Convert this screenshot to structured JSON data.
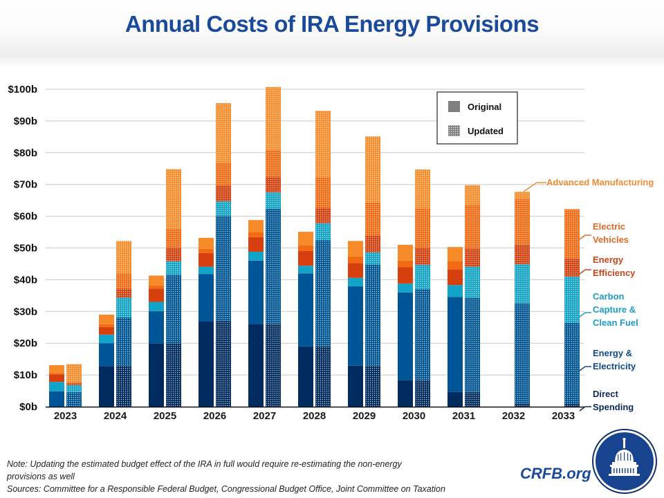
{
  "title": "Annual Costs of IRA Energy Provisions",
  "note_lines": [
    "Note: Updating the estimated budget effect of the IRA in full would require re-estimating the non-energy",
    "provisions as well",
    "Sources: Committee for a Responsible Federal Budget, Congressional Budget Office, Joint Committee on Taxation"
  ],
  "brand": "CRFB.org",
  "logo_icon": "capitol-dome-icon",
  "chart_data": {
    "type": "bar",
    "stacked": true,
    "grouped": true,
    "title": "Annual Costs of IRA Energy Provisions",
    "xlabel": "",
    "ylabel": "",
    "ylim": [
      0,
      100
    ],
    "ytick_labels": [
      "$0b",
      "$10b",
      "$20b",
      "$30b",
      "$40b",
      "$50b",
      "$60b",
      "$70b",
      "$80b",
      "$90b",
      "$100b"
    ],
    "yticks": [
      0,
      10,
      20,
      30,
      40,
      50,
      60,
      70,
      80,
      90,
      100
    ],
    "grid": true,
    "categories": [
      "2023",
      "2024",
      "2025",
      "2026",
      "2027",
      "2028",
      "2029",
      "2030",
      "2031",
      "2032",
      "2033"
    ],
    "legend": {
      "placement": "top-right",
      "entries": [
        {
          "label": "Original",
          "style": "solid"
        },
        {
          "label": "Updated",
          "style": "dotted"
        }
      ]
    },
    "components": [
      {
        "name": "Direct Spending",
        "label_lines": [
          "Direct",
          "Spending"
        ],
        "color": "#002b5e",
        "label_color": "#0b2a5b"
      },
      {
        "name": "Energy & Electricity",
        "label_lines": [
          "Energy &",
          "Electricity"
        ],
        "color": "#005596",
        "label_color": "#0d4a8a"
      },
      {
        "name": "Carbon Capture & Clean Fuel",
        "label_lines": [
          "Carbon",
          "Capture &",
          "Clean Fuel"
        ],
        "color": "#12a3c8",
        "label_color": "#1d9cc4"
      },
      {
        "name": "Energy Efficiency",
        "label_lines": [
          "Energy",
          "Efficiency"
        ],
        "color": "#d6400e",
        "label_color": "#c4471c"
      },
      {
        "name": "Electric Vehicles",
        "label_lines": [
          "Electric",
          "Vehicles"
        ],
        "color": "#f26a12",
        "label_color": "#e06a26"
      },
      {
        "name": "Advanced Manufacturing",
        "label_lines": [
          "Advanced Manufacturing"
        ],
        "color": "#f78b2a",
        "label_color": "#ef8c36"
      }
    ],
    "series": [
      {
        "name": "Original",
        "values_by_component": {
          "Direct Spending": [
            0,
            12.8,
            19.9,
            26.8,
            26.1,
            19.0,
            12.9,
            8.3,
            4.6,
            null,
            null
          ],
          "Energy & Electricity": [
            4.8,
            7.2,
            10.2,
            15.0,
            19.9,
            23.0,
            25.0,
            27.7,
            30.0,
            null,
            null
          ],
          "Carbon Capture & Clean Fuel": [
            3.0,
            2.7,
            2.9,
            2.3,
            2.8,
            2.4,
            2.7,
            2.8,
            3.7,
            null,
            null
          ],
          "Energy Efficiency": [
            2.4,
            2.4,
            4.2,
            4.3,
            4.6,
            4.7,
            4.6,
            5.1,
            5.0,
            null,
            null
          ],
          "Electric Vehicles": [
            0.4,
            0.9,
            1.0,
            1.3,
            1.5,
            1.7,
            2.1,
            2.1,
            2.6,
            null,
            null
          ],
          "Advanced Manufacturing": [
            2.5,
            3.0,
            3.1,
            3.5,
            3.9,
            4.3,
            4.9,
            5.0,
            4.4,
            null,
            null
          ]
        },
        "totals": [
          13.1,
          29.0,
          41.3,
          53.2,
          58.8,
          55.1,
          52.2,
          51.0,
          50.3,
          null,
          null
        ]
      },
      {
        "name": "Updated",
        "values_by_component": {
          "Direct Spending": [
            0,
            12.9,
            19.9,
            27.0,
            26.1,
            19.0,
            12.9,
            8.3,
            4.6,
            1.0,
            1.0
          ],
          "Energy & Electricity": [
            4.6,
            15.2,
            21.6,
            33.1,
            36.2,
            33.4,
            31.9,
            28.8,
            29.7,
            31.6,
            25.4
          ],
          "Carbon Capture & Clean Fuel": [
            2.2,
            6.3,
            4.3,
            4.6,
            5.2,
            5.4,
            3.8,
            7.6,
            9.8,
            12.3,
            14.6
          ],
          "Energy Efficiency": [
            0.5,
            2.8,
            4.2,
            5.0,
            5.0,
            4.9,
            5.3,
            5.3,
            5.7,
            6.1,
            5.6
          ],
          "Electric Vehicles": [
            0.5,
            4.8,
            6.0,
            7.0,
            8.3,
            9.6,
            10.4,
            12.4,
            13.7,
            14.5,
            15.6
          ],
          "Advanced Manufacturing": [
            5.6,
            10.2,
            18.8,
            18.9,
            19.9,
            20.9,
            20.8,
            12.3,
            6.3,
            2.2,
            0
          ]
        },
        "totals": [
          13.4,
          52.2,
          74.8,
          95.6,
          100.7,
          93.2,
          85.1,
          74.7,
          69.8,
          67.7,
          62.2
        ]
      }
    ]
  }
}
